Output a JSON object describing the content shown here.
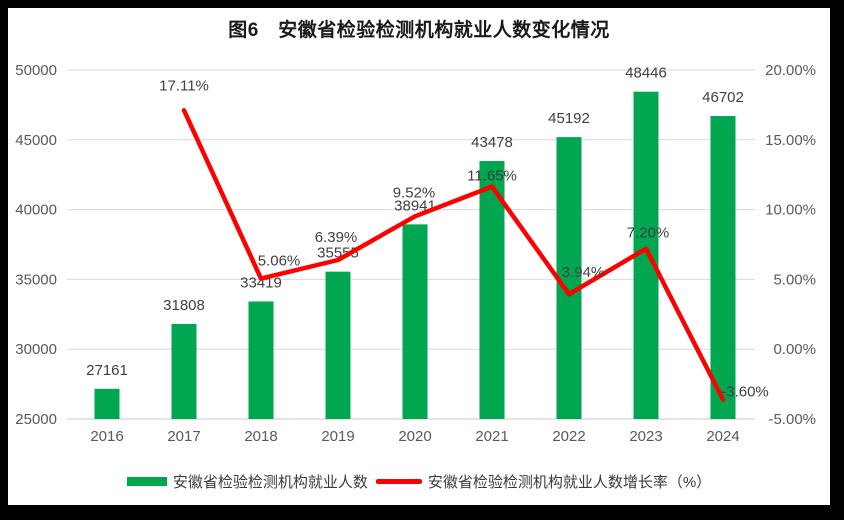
{
  "title": "图6　安徽省检验检测机构就业人数变化情况",
  "legend": {
    "bar_label": "安徽省检验检测机构就业人数",
    "line_label": "安徽省检验检测机构就业人数增长率（%）"
  },
  "colors": {
    "bar": "#00A650",
    "line": "#FF0000",
    "grid": "#D9D9D9",
    "axis_line": "#C9C9C9",
    "axis_text": "#595959",
    "data_label": "#404040",
    "title_text": "#1A1A1A",
    "frame": "#000000",
    "background": "#FFFFFF"
  },
  "chart_data": {
    "type": "combo",
    "title": "图6　安徽省检验检测机构就业人数变化情况",
    "categories": [
      "2016",
      "2017",
      "2018",
      "2019",
      "2020",
      "2021",
      "2022",
      "2023",
      "2024"
    ],
    "series": [
      {
        "name": "安徽省检验检测机构就业人数",
        "type": "bar",
        "axis": "left",
        "values": [
          27161,
          31808,
          33419,
          35555,
          38941,
          43478,
          45192,
          48446,
          46702
        ],
        "labels": [
          "27161",
          "31808",
          "33419",
          "35555",
          "38941",
          "43478",
          "45192",
          "48446",
          "46702"
        ]
      },
      {
        "name": "安徽省检验检测机构就业人数增长率（%）",
        "type": "line",
        "axis": "right",
        "values": [
          null,
          17.11,
          5.06,
          6.39,
          9.52,
          11.65,
          3.94,
          7.2,
          -3.6
        ],
        "labels": [
          null,
          "17.11%",
          "5.06%",
          "6.39%",
          "9.52%",
          "11.65%",
          "3.94%",
          "7.20%",
          "-3.60%"
        ]
      }
    ],
    "left_axis": {
      "min": 25000,
      "max": 50000,
      "step": 5000,
      "ticks": [
        "25000",
        "30000",
        "35000",
        "40000",
        "45000",
        "50000"
      ]
    },
    "right_axis": {
      "min": -5,
      "max": 20,
      "step": 5,
      "ticks": [
        "-5.00%",
        "0.00%",
        "5.00%",
        "10.00%",
        "15.00%",
        "20.00%"
      ]
    },
    "grid": true,
    "legend_position": "bottom"
  }
}
